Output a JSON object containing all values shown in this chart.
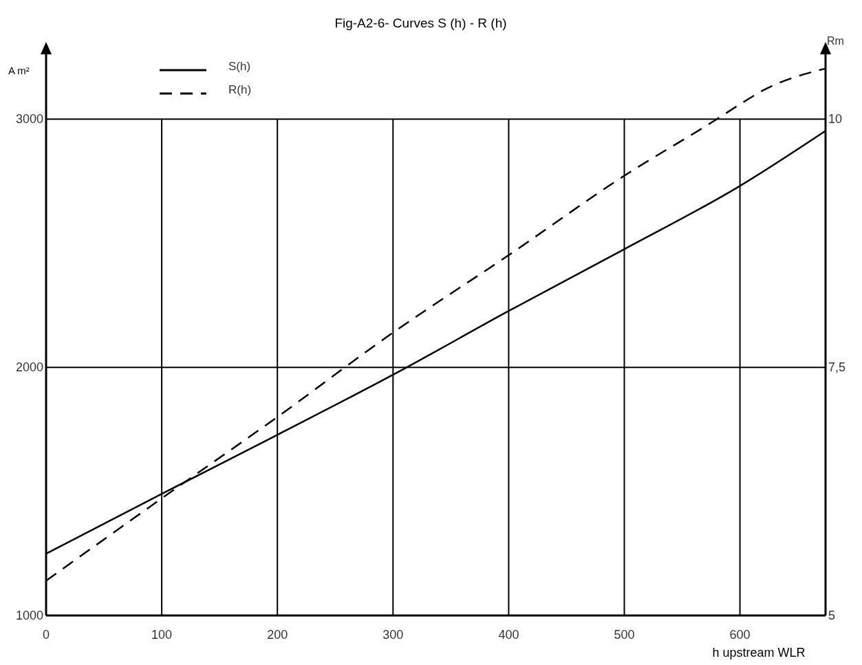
{
  "chart_data": {
    "type": "line",
    "title": "Fig-A2-6- Curves  S (h) - R (h)",
    "xlabel": "h  upstream WLR",
    "ylabel": "A m²",
    "y2label": "Rm",
    "xlim": [
      0,
      674
    ],
    "xticks": [
      0,
      100,
      200,
      300,
      400,
      500,
      600
    ],
    "ylim": [
      1000,
      3300
    ],
    "yticks": [
      1000,
      2000,
      3000
    ],
    "y2lim": [
      5,
      10.75
    ],
    "y2ticks": [
      5,
      {
        "value": 7.5,
        "label": "7,5"
      },
      10
    ],
    "grid": true,
    "legend": "top left",
    "series": [
      {
        "name": "S(h)",
        "color": "#000000",
        "line_style": "solid",
        "x": [
          0,
          100,
          200,
          300,
          400,
          500,
          600,
          674
        ],
        "values": [
          1249,
          1490,
          1728,
          1970,
          2227,
          2476,
          2731,
          2953
        ]
      },
      {
        "name": "R(h)",
        "color": "#000000",
        "line_style": "dashed",
        "axis": "y2",
        "x": [
          0,
          100,
          200,
          300,
          400,
          500,
          580,
          600,
          620,
          674
        ],
        "values": [
          5.35,
          6.18,
          7.0,
          7.85,
          8.63,
          9.43,
          10.0,
          10.15,
          10.29,
          10.51
        ]
      }
    ]
  }
}
